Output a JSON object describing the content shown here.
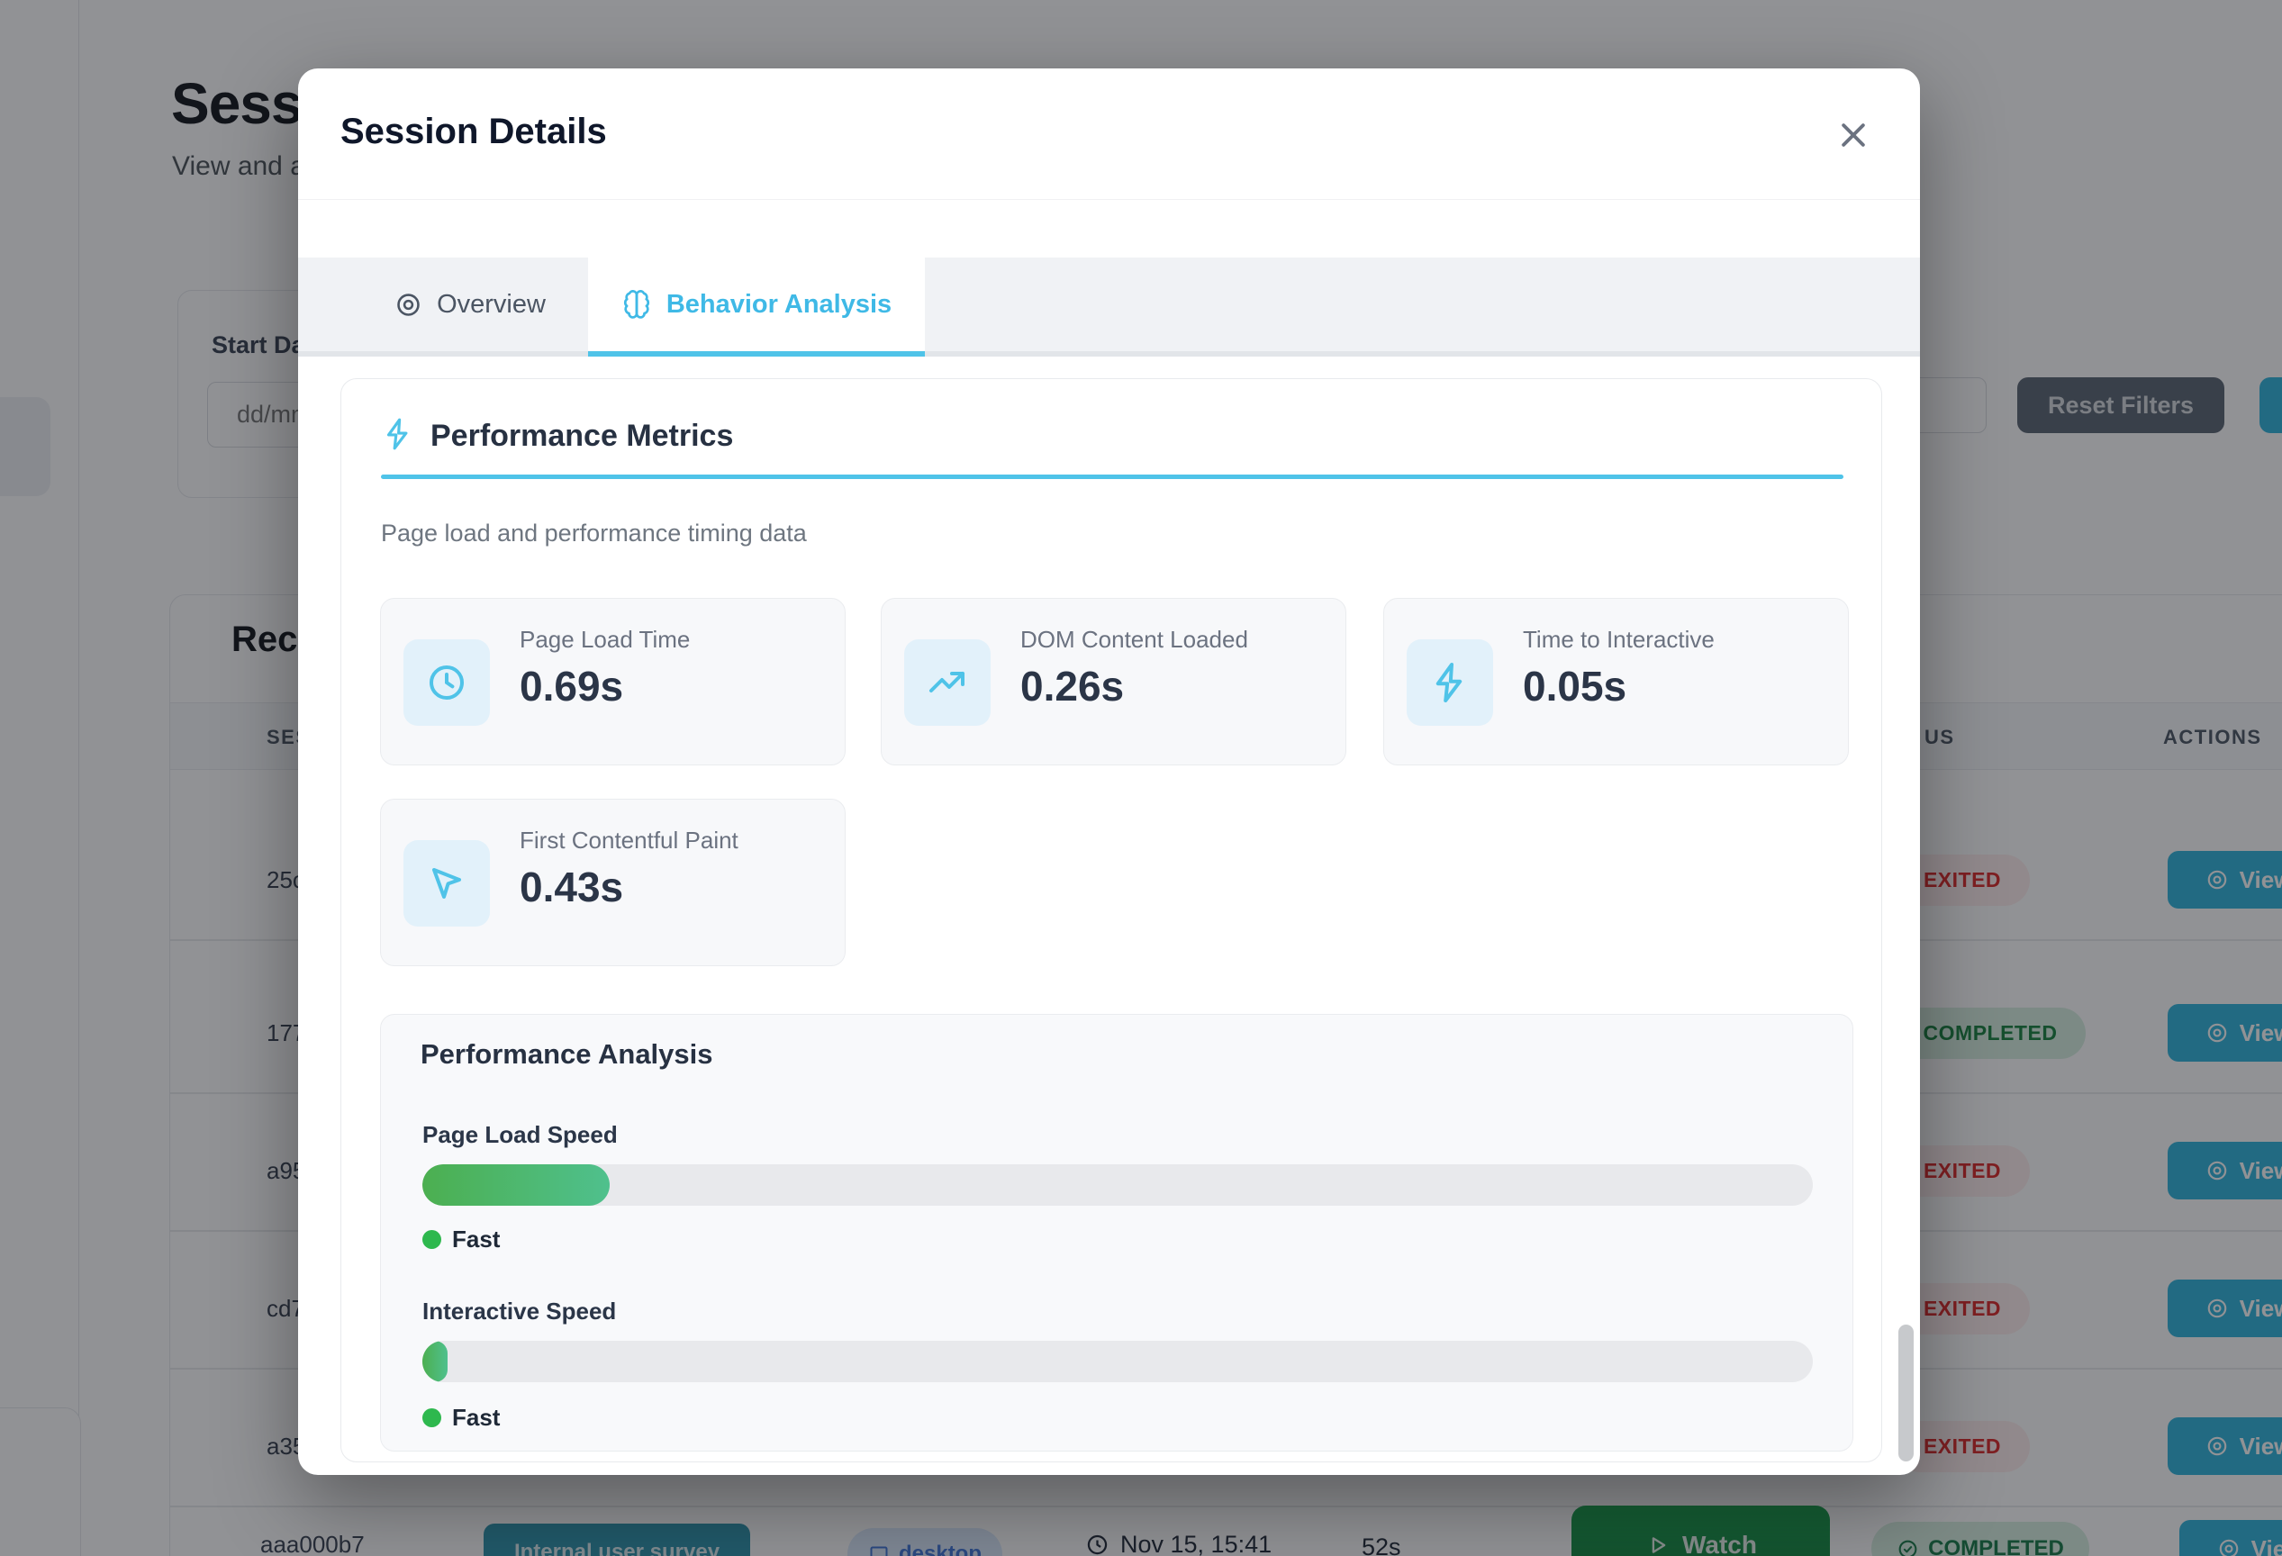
{
  "background": {
    "page_title": "Sess",
    "page_subtitle": "View and a",
    "filters": {
      "start_date_label": "Start Da",
      "date_placeholder": "dd/mm",
      "reset_button_label": "Reset Filters"
    },
    "recent_section_title": "Rec",
    "table": {
      "columns": {
        "session_partial": "SES",
        "status_partial": "US",
        "actions": "ACTIONS"
      },
      "rows": [
        {
          "id": "25c",
          "status": "EXITED",
          "action": "View"
        },
        {
          "id": "177",
          "status": "COMPLETED",
          "action": "View"
        },
        {
          "id": "a95",
          "status": "EXITED",
          "action": "View"
        },
        {
          "id": "cd7",
          "status": "EXITED",
          "action": "View"
        },
        {
          "id": "a35",
          "status": "EXITED",
          "action": "View"
        }
      ],
      "bottom_row": {
        "id": "aaa000b7",
        "survey_badge": "Internal user survey",
        "device": "desktop",
        "timestamp": "Nov 15, 15:41",
        "duration": "52s",
        "watch_label": "Watch",
        "status": "COMPLETED",
        "action": "View"
      }
    }
  },
  "modal": {
    "title": "Session Details",
    "tabs": [
      {
        "label": "Overview",
        "icon": "eye-icon",
        "active": false
      },
      {
        "label": "Behavior Analysis",
        "icon": "brain-icon",
        "active": true
      }
    ],
    "section": {
      "title": "Performance Metrics",
      "subtitle": "Page load and performance timing data",
      "metrics": [
        {
          "label": "Page Load Time",
          "value": "0.69s",
          "icon": "clock-icon"
        },
        {
          "label": "DOM Content Loaded",
          "value": "0.26s",
          "icon": "trending-up-icon"
        },
        {
          "label": "Time to Interactive",
          "value": "0.05s",
          "icon": "zap-icon"
        },
        {
          "label": "First Contentful Paint",
          "value": "0.43s",
          "icon": "cursor-icon"
        }
      ],
      "analysis": {
        "title": "Performance Analysis",
        "bars": [
          {
            "label": "Page Load Speed",
            "percent": 13.5,
            "rating": "Fast"
          },
          {
            "label": "Interactive Speed",
            "percent": 1.8,
            "rating": "Fast"
          }
        ]
      }
    }
  },
  "colors": {
    "accent_cyan": "#4fc3e8",
    "tab_active_text": "#3fb9e6",
    "value_navy": "#2b3547",
    "bar_green_start": "#4caf50",
    "bar_green_end": "#4fc08d",
    "fast_dot": "#2eb84e",
    "exited_text": "#dc2626",
    "completed_text": "#15803d",
    "view_button_bg": "#2eb4dc",
    "watch_button_green": "#17a24b",
    "reset_button_bg": "#5a6472"
  }
}
